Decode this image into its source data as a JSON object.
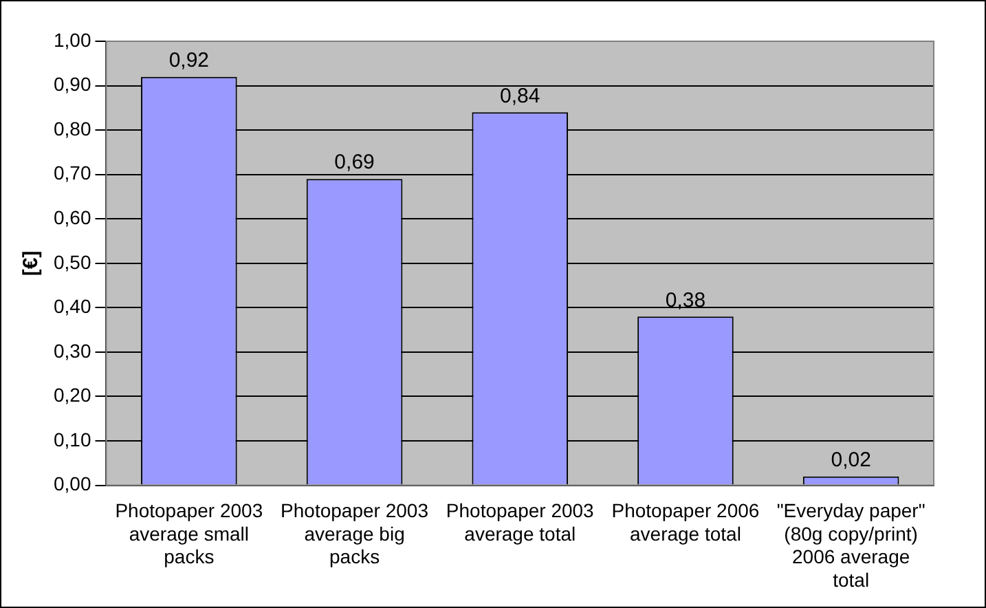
{
  "chart_data": {
    "type": "bar",
    "ylabel": "[€]",
    "categories": [
      "Photopaper 2003 average small packs",
      "Photopaper 2003 average big packs",
      "Photopaper 2003 average total",
      "Photopaper 2006 average total",
      "\"Everyday paper\" (80g copy/print) 2006 average total"
    ],
    "values": [
      0.92,
      0.69,
      0.84,
      0.38,
      0.02
    ],
    "value_labels": [
      "0,92",
      "0,69",
      "0,84",
      "0,38",
      "0,02"
    ],
    "color": "#9999ff",
    "ylim": [
      0,
      1
    ],
    "yticks": [
      {
        "value": 0,
        "label": "0,00"
      },
      {
        "value": 0.1,
        "label": "0,10"
      },
      {
        "value": 0.2,
        "label": "0,20"
      },
      {
        "value": 0.3,
        "label": "0,30"
      },
      {
        "value": 0.4,
        "label": "0,40"
      },
      {
        "value": 0.5,
        "label": "0,50"
      },
      {
        "value": 0.6,
        "label": "0,60"
      },
      {
        "value": 0.7,
        "label": "0,70"
      },
      {
        "value": 0.8,
        "label": "0,80"
      },
      {
        "value": 0.9,
        "label": "0,90"
      },
      {
        "value": 1,
        "label": "1,00"
      }
    ],
    "grid": "y",
    "legend": false
  }
}
